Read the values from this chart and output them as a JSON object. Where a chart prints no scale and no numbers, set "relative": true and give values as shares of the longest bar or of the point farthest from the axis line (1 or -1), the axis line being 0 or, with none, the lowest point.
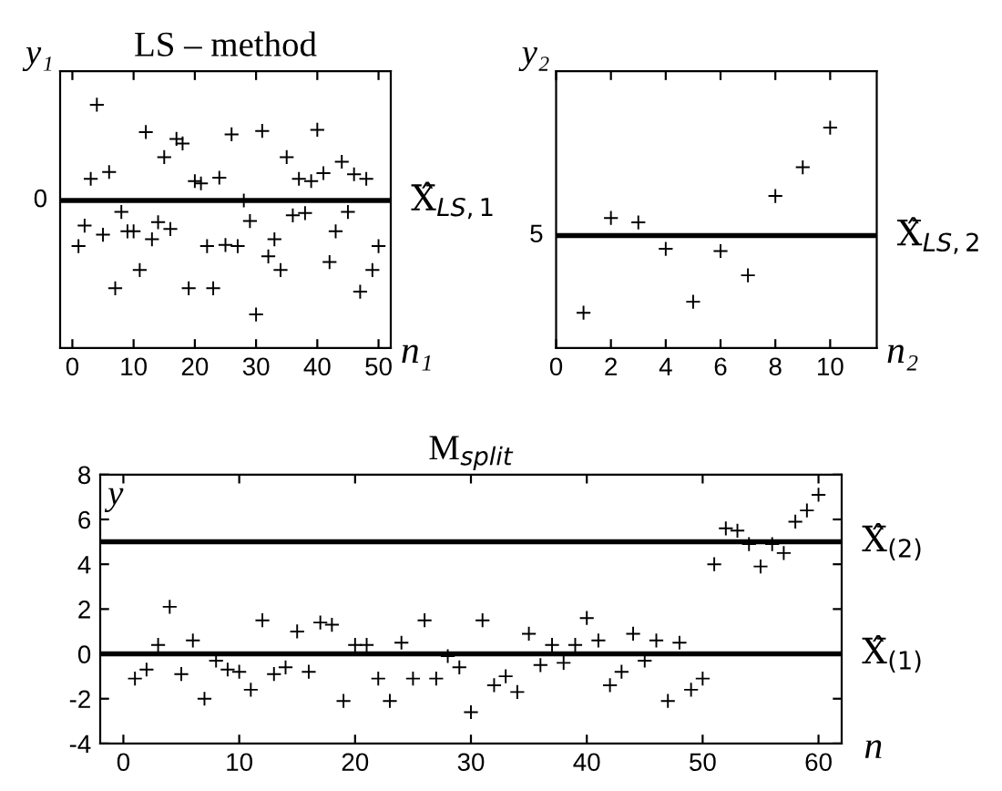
{
  "chart_data": [
    {
      "type": "scatter",
      "title": "LS – method",
      "ylabel": "y₁",
      "xlabel": "n₁",
      "relative": true,
      "marker": "cross",
      "grid": false,
      "legend": false,
      "x": [
        1,
        2,
        3,
        4,
        5,
        6,
        7,
        8,
        9,
        10,
        11,
        12,
        13,
        14,
        15,
        16,
        17,
        18,
        19,
        20,
        21,
        22,
        23,
        24,
        25,
        26,
        27,
        28,
        29,
        30,
        31,
        32,
        33,
        34,
        35,
        36,
        37,
        38,
        39,
        40,
        41,
        42,
        43,
        44,
        45,
        46,
        47,
        48,
        49,
        50
      ],
      "series": [
        {
          "color": "#000000",
          "values": [
            -0.4,
            -0.22,
            0.19,
            0.84,
            -0.3,
            0.25,
            -0.77,
            -0.1,
            -0.27,
            -0.27,
            -0.61,
            0.6,
            -0.34,
            -0.19,
            0.38,
            -0.25,
            0.54,
            0.5,
            -0.77,
            0.17,
            0.15,
            -0.4,
            -0.77,
            0.2,
            -0.39,
            0.58,
            -0.4,
            0.0,
            -0.18,
            -1.0,
            0.61,
            -0.49,
            -0.34,
            -0.61,
            0.38,
            -0.13,
            0.19,
            -0.11,
            0.17,
            0.62,
            0.24,
            -0.54,
            -0.27,
            0.34,
            -0.1,
            0.23,
            -0.8,
            0.19,
            -0.61,
            -0.4
          ]
        }
      ],
      "xlim": [
        -2,
        52
      ],
      "xticks": [
        0,
        10,
        20,
        30,
        40,
        50
      ],
      "annotations": [
        "0"
      ],
      "ref_lines": [
        {
          "axis": "y",
          "value": 0,
          "label": "X̂$_{LS,1}$",
          "color": "#000000"
        }
      ]
    },
    {
      "type": "scatter",
      "ylabel": "y₂",
      "xlabel": "n₂",
      "relative": true,
      "marker": "cross",
      "grid": false,
      "legend": false,
      "x": [
        1,
        2,
        3,
        4,
        5,
        6,
        7,
        8,
        9,
        10
      ],
      "series": [
        {
          "color": "#000000",
          "values": [
            0.16,
            0.59,
            0.57,
            0.45,
            0.21,
            0.44,
            0.33,
            0.69,
            0.82,
            1.0
          ]
        }
      ],
      "xlim": [
        0,
        11.7
      ],
      "xticks": [
        0,
        2,
        4,
        6,
        8,
        10
      ],
      "annotations": [
        "5"
      ],
      "ref_lines": [
        {
          "axis": "y",
          "value": 0.51,
          "label": "X̂$_{LS,2}$",
          "color": "#000000"
        }
      ]
    },
    {
      "type": "scatter",
      "title": "M$_{split}$",
      "ylabel": "y",
      "xlabel": "n",
      "marker": "cross",
      "grid": false,
      "legend": false,
      "x": [
        1,
        2,
        3,
        4,
        5,
        6,
        7,
        8,
        9,
        10,
        11,
        12,
        13,
        14,
        15,
        16,
        17,
        18,
        19,
        20,
        21,
        22,
        23,
        24,
        25,
        26,
        27,
        28,
        29,
        30,
        31,
        32,
        33,
        34,
        35,
        36,
        37,
        38,
        39,
        40,
        41,
        42,
        43,
        44,
        45,
        46,
        47,
        48,
        49,
        50,
        51,
        52,
        53,
        54,
        55,
        56,
        57,
        58,
        59,
        60
      ],
      "series": [
        {
          "color": "#000000",
          "values": [
            -1.1,
            -0.7,
            0.4,
            2.1,
            -0.9,
            0.6,
            -2.0,
            -0.3,
            -0.7,
            -0.8,
            -1.6,
            1.5,
            -0.9,
            -0.6,
            1.0,
            -0.8,
            1.4,
            1.3,
            -2.1,
            0.4,
            0.4,
            -1.1,
            -2.1,
            0.5,
            -1.1,
            1.5,
            -1.1,
            -0.1,
            -0.6,
            -2.6,
            1.5,
            -1.4,
            -1.0,
            -1.7,
            0.9,
            -0.5,
            0.4,
            -0.4,
            0.4,
            1.6,
            0.6,
            -1.4,
            -0.8,
            0.9,
            -0.3,
            0.6,
            -2.1,
            0.5,
            -1.6,
            -1.1,
            4.0,
            5.6,
            5.5,
            4.9,
            3.9,
            4.9,
            4.5,
            5.9,
            6.4,
            7.1
          ]
        }
      ],
      "xlim": [
        -2,
        62
      ],
      "xticks": [
        0,
        10,
        20,
        30,
        40,
        50,
        60
      ],
      "ylim": [
        -4,
        8
      ],
      "yticks": [
        -4,
        -2,
        0,
        2,
        4,
        6,
        8
      ],
      "ref_lines": [
        {
          "axis": "y",
          "value": 5,
          "label": "X̂$_{(2)}$",
          "color": "#000000"
        },
        {
          "axis": "y",
          "value": 0,
          "label": "X̂$_{(1)}$",
          "color": "#000000"
        }
      ]
    }
  ]
}
